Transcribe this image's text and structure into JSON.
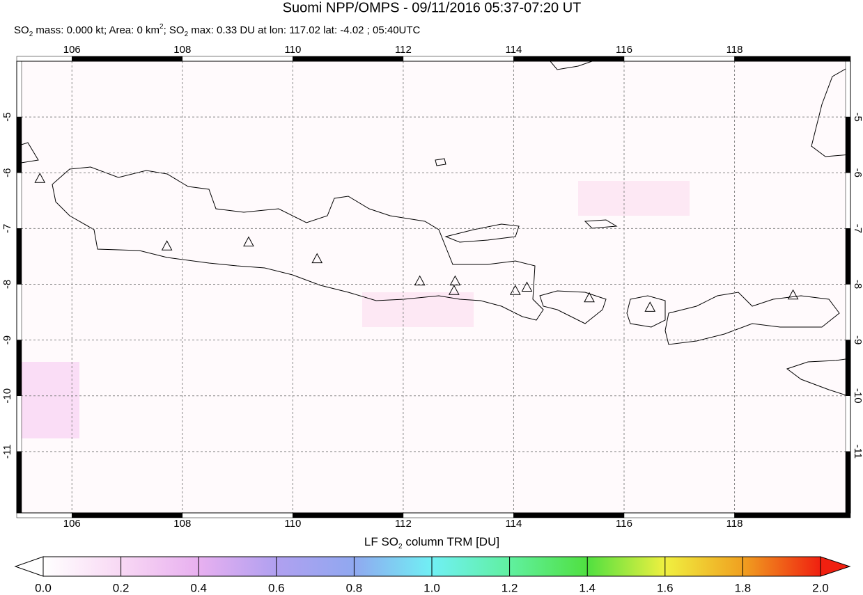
{
  "chart_data": {
    "type": "map",
    "title": "Suomi NPP/OMPS - 09/11/2016 05:37-07:20 UT",
    "subtitle": [
      {
        "text": "SO"
      },
      {
        "text": "2",
        "script": "sub"
      },
      {
        "text": " mass: 0.000 kt; Area: 0 km"
      },
      {
        "text": "2",
        "script": "super"
      },
      {
        "text": "; SO"
      },
      {
        "text": "2",
        "script": "sub"
      },
      {
        "text": " max: 0.33 DU at lon: 117.02 lat: -4.02 ; 05:40UTC"
      }
    ],
    "xlim": [
      105,
      120.1
    ],
    "ylim": [
      -12.1,
      -4
    ],
    "xticks": [
      106,
      108,
      110,
      112,
      114,
      116,
      118
    ],
    "yticks": [
      -5,
      -6,
      -7,
      -8,
      -9,
      -10,
      -11
    ],
    "grid": true,
    "volcanoes": {
      "lon": [
        105.42,
        107.72,
        109.2,
        110.44,
        112.3,
        112.94,
        112.92,
        114.03,
        114.24,
        115.37,
        116.47,
        119.06
      ],
      "lat": [
        -6.1,
        -7.31,
        -7.24,
        -7.54,
        -7.94,
        -7.94,
        -8.11,
        -8.11,
        -8.05,
        -8.24,
        -8.41,
        -8.19
      ]
    },
    "colorbar": {
      "label": [
        {
          "text": "LF SO"
        },
        {
          "text": "2",
          "script": "sub"
        },
        {
          "text": " column TRM [DU]"
        }
      ],
      "lim": [
        0,
        2
      ],
      "ticks": [
        {
          "value": 0,
          "label": "0.0"
        },
        0.2,
        0.4,
        0.6,
        0.8,
        {
          "value": 1,
          "label": "1.0"
        },
        1.2,
        1.4,
        1.6,
        1.8,
        {
          "value": 2,
          "label": "2.0"
        }
      ]
    }
  }
}
